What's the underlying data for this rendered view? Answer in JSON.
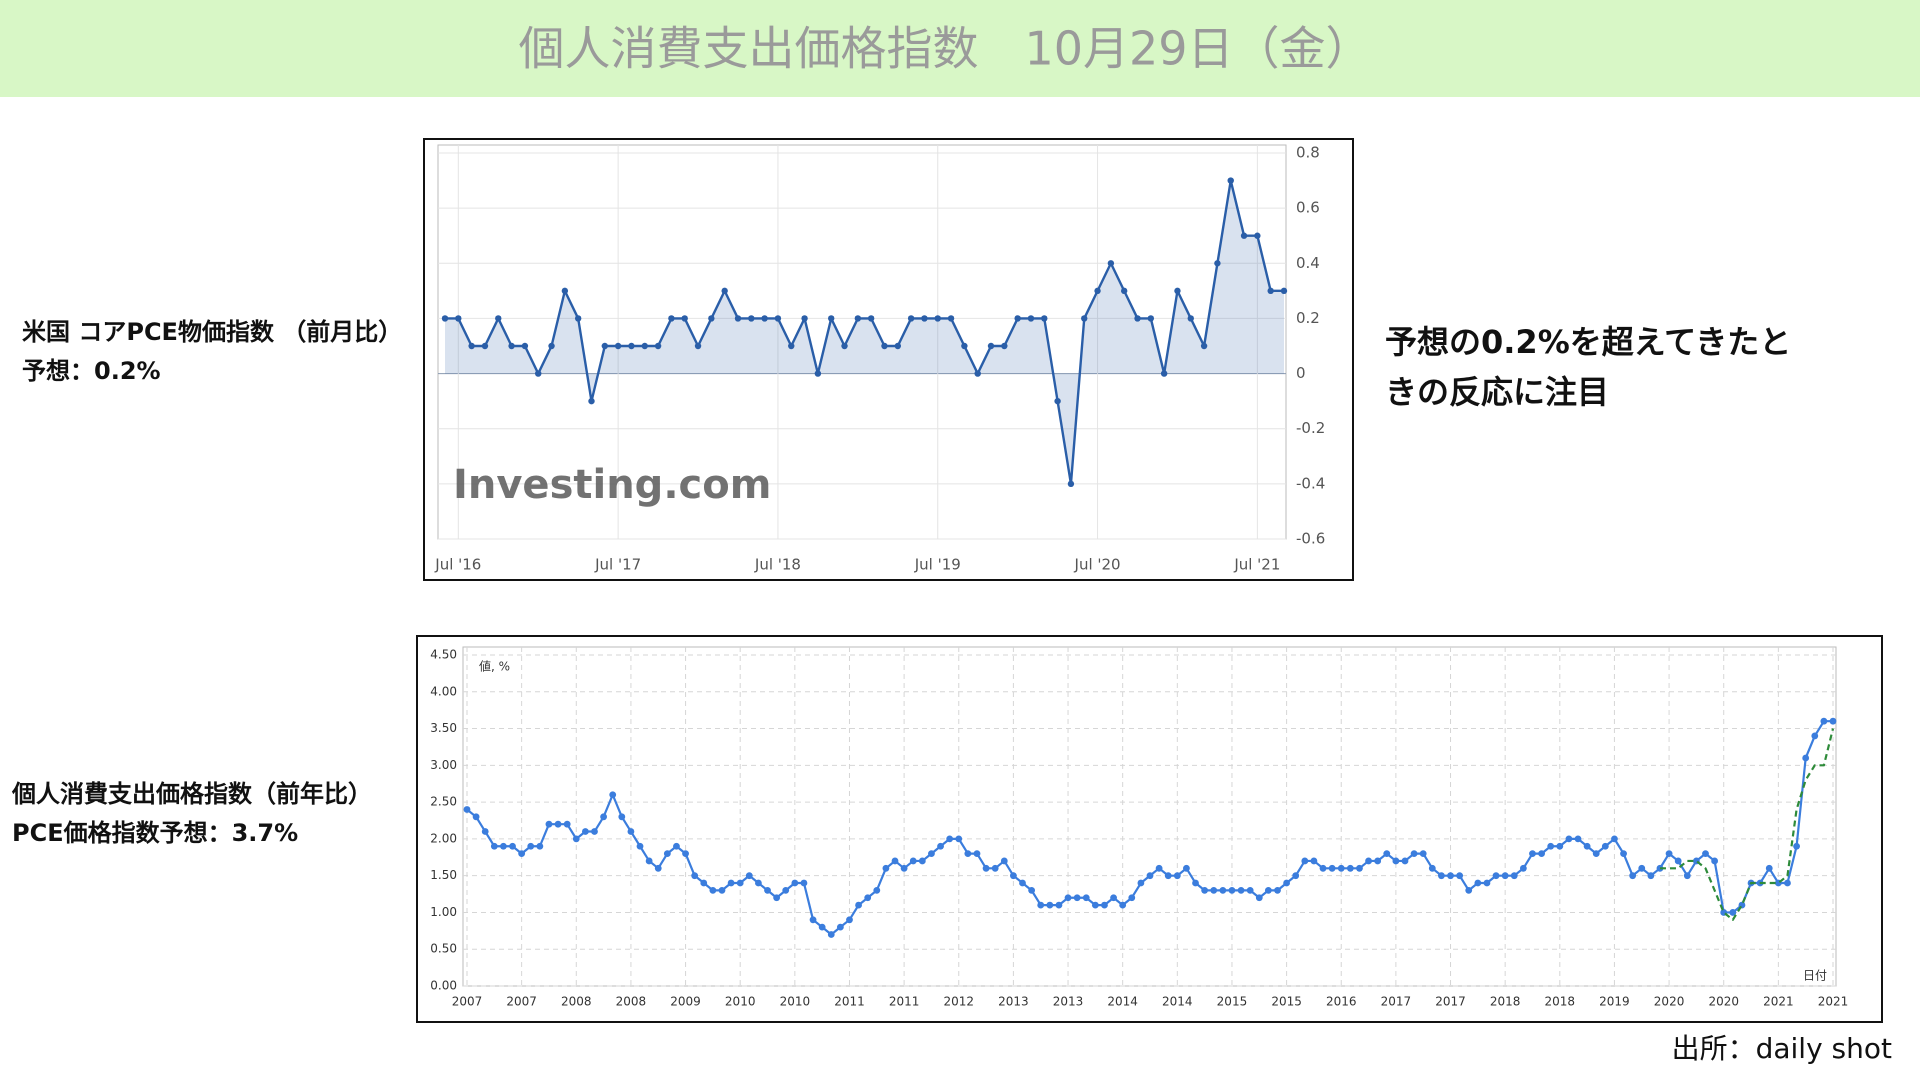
{
  "header": {
    "title": "個人消費支出価格指数　10月29日（金）"
  },
  "labels": {
    "core_title": "米国 コアPCE物価指数 （前月比）",
    "core_forecast": "予想：0.2%",
    "pce_title": "個人消費支出価格指数（前年比）",
    "pce_forecast": "PCE価格指数予想：3.7%"
  },
  "note": {
    "line1": "予想の0.2%を超えてきたと",
    "line2": "きの反応に注目"
  },
  "source": "出所：daily shot",
  "chart_data": [
    {
      "type": "line",
      "watermark": "Investing.com",
      "area": true,
      "grid": true,
      "categories": [
        null,
        "Jul '16",
        null,
        null,
        null,
        null,
        null,
        null,
        null,
        null,
        null,
        null,
        null,
        "Jul '17",
        null,
        null,
        null,
        null,
        null,
        null,
        null,
        null,
        null,
        null,
        null,
        "Jul '18",
        null,
        null,
        null,
        null,
        null,
        null,
        null,
        null,
        null,
        null,
        null,
        "Jul '19",
        null,
        null,
        null,
        null,
        null,
        null,
        null,
        null,
        null,
        null,
        null,
        "Jul '20",
        null,
        null,
        null,
        null,
        null,
        null,
        null,
        null,
        null,
        null,
        null,
        "Jul '21",
        null,
        null
      ],
      "series": [
        {
          "color": "#2a5ea8",
          "markers": true,
          "values": [
            0.2,
            0.2,
            0.1,
            0.1,
            0.2,
            0.1,
            0.1,
            0.0,
            0.1,
            0.3,
            0.2,
            -0.1,
            0.1,
            0.1,
            0.1,
            0.1,
            0.1,
            0.2,
            0.2,
            0.1,
            0.2,
            0.3,
            0.2,
            0.2,
            0.2,
            0.2,
            0.1,
            0.2,
            0.0,
            0.2,
            0.1,
            0.2,
            0.2,
            0.1,
            0.1,
            0.2,
            0.2,
            0.2,
            0.2,
            0.1,
            0.0,
            0.1,
            0.1,
            0.2,
            0.2,
            0.2,
            -0.1,
            -0.4,
            0.2,
            0.3,
            0.4,
            0.3,
            0.2,
            0.2,
            0.0,
            0.3,
            0.2,
            0.1,
            0.4,
            0.7,
            0.5,
            0.5,
            0.3,
            0.3
          ]
        }
      ],
      "ylim": [
        -0.6,
        0.8
      ],
      "yticks": [
        0.8,
        0.6,
        0.4,
        0.2,
        0,
        -0.2,
        -0.4,
        -0.6
      ]
    },
    {
      "type": "line",
      "grid": true,
      "ylabel": "値, %",
      "xlabel": "日付",
      "categories": [
        "2007",
        null,
        null,
        null,
        null,
        null,
        "2007",
        null,
        null,
        null,
        null,
        null,
        "2008",
        null,
        null,
        null,
        null,
        null,
        "2008",
        null,
        null,
        null,
        null,
        null,
        "2009",
        null,
        null,
        null,
        null,
        null,
        "2010",
        null,
        null,
        null,
        null,
        null,
        "2010",
        null,
        null,
        null,
        null,
        null,
        "2011",
        null,
        null,
        null,
        null,
        null,
        "2011",
        null,
        null,
        null,
        null,
        null,
        "2012",
        null,
        null,
        null,
        null,
        null,
        "2013",
        null,
        null,
        null,
        null,
        null,
        "2013",
        null,
        null,
        null,
        null,
        null,
        "2014",
        null,
        null,
        null,
        null,
        null,
        "2014",
        null,
        null,
        null,
        null,
        null,
        "2015",
        null,
        null,
        null,
        null,
        null,
        "2015",
        null,
        null,
        null,
        null,
        null,
        "2016",
        null,
        null,
        null,
        null,
        null,
        "2017",
        null,
        null,
        null,
        null,
        null,
        "2017",
        null,
        null,
        null,
        null,
        null,
        "2018",
        null,
        null,
        null,
        null,
        null,
        "2018",
        null,
        null,
        null,
        null,
        null,
        "2019",
        null,
        null,
        null,
        null,
        null,
        "2020",
        null,
        null,
        null,
        null,
        null,
        "2020",
        null,
        null,
        null,
        null,
        null,
        "2021",
        null,
        null,
        null,
        null,
        null,
        "2021"
      ],
      "series": [
        {
          "color": "#3b7ddd",
          "markers": true,
          "values": [
            2.4,
            2.3,
            2.1,
            1.9,
            1.9,
            1.9,
            1.8,
            1.9,
            1.9,
            2.2,
            2.2,
            2.2,
            2.0,
            2.1,
            2.1,
            2.3,
            2.6,
            2.3,
            2.1,
            1.9,
            1.7,
            1.6,
            1.8,
            1.9,
            1.8,
            1.5,
            1.4,
            1.3,
            1.3,
            1.4,
            1.4,
            1.5,
            1.4,
            1.3,
            1.2,
            1.3,
            1.4,
            1.4,
            0.9,
            0.8,
            0.7,
            0.8,
            0.9,
            1.1,
            1.2,
            1.3,
            1.6,
            1.7,
            1.6,
            1.7,
            1.7,
            1.8,
            1.9,
            2.0,
            2.0,
            1.8,
            1.8,
            1.6,
            1.6,
            1.7,
            1.5,
            1.4,
            1.3,
            1.1,
            1.1,
            1.1,
            1.2,
            1.2,
            1.2,
            1.1,
            1.1,
            1.2,
            1.1,
            1.2,
            1.4,
            1.5,
            1.6,
            1.5,
            1.5,
            1.6,
            1.4,
            1.3,
            1.3,
            1.3,
            1.3,
            1.3,
            1.3,
            1.2,
            1.3,
            1.3,
            1.4,
            1.5,
            1.7,
            1.7,
            1.6,
            1.6,
            1.6,
            1.6,
            1.6,
            1.7,
            1.7,
            1.8,
            1.7,
            1.7,
            1.8,
            1.8,
            1.6,
            1.5,
            1.5,
            1.5,
            1.3,
            1.4,
            1.4,
            1.5,
            1.5,
            1.5,
            1.6,
            1.8,
            1.8,
            1.9,
            1.9,
            2.0,
            2.0,
            1.9,
            1.8,
            1.9,
            2.0,
            1.8,
            1.5,
            1.6,
            1.5,
            1.6,
            1.8,
            1.7,
            1.5,
            1.7,
            1.8,
            1.7,
            1.0,
            1.0,
            1.1,
            1.4,
            1.4,
            1.6,
            1.4,
            1.4,
            1.9,
            3.1,
            3.4,
            3.6,
            3.6
          ]
        },
        {
          "color": "#2e8b3a",
          "style": "dashed",
          "values": [
            null,
            null,
            null,
            null,
            null,
            null,
            null,
            null,
            null,
            null,
            null,
            null,
            null,
            null,
            null,
            null,
            null,
            null,
            null,
            null,
            null,
            null,
            null,
            null,
            null,
            null,
            null,
            null,
            null,
            null,
            null,
            null,
            null,
            null,
            null,
            null,
            null,
            null,
            null,
            null,
            null,
            null,
            null,
            null,
            null,
            null,
            null,
            null,
            null,
            null,
            null,
            null,
            null,
            null,
            null,
            null,
            null,
            null,
            null,
            null,
            null,
            null,
            null,
            null,
            null,
            null,
            null,
            null,
            null,
            null,
            null,
            null,
            null,
            null,
            null,
            null,
            null,
            null,
            null,
            null,
            null,
            null,
            null,
            null,
            null,
            null,
            null,
            null,
            null,
            null,
            null,
            null,
            null,
            null,
            null,
            null,
            null,
            null,
            null,
            null,
            null,
            null,
            null,
            null,
            null,
            null,
            null,
            null,
            null,
            null,
            null,
            null,
            null,
            null,
            null,
            null,
            null,
            null,
            null,
            null,
            null,
            null,
            null,
            null,
            null,
            null,
            null,
            null,
            null,
            null,
            null,
            1.6,
            1.6,
            1.6,
            1.7,
            1.7,
            1.6,
            1.3,
            1.0,
            0.9,
            1.1,
            1.4,
            1.4,
            1.4,
            1.4,
            1.5,
            2.4,
            2.8,
            3.0,
            3.0,
            3.5
          ]
        }
      ],
      "ylim": [
        0,
        4.5
      ],
      "yticks": [
        {
          "value": 0,
          "label": "0.00"
        },
        {
          "value": 0.5,
          "label": "0.50"
        },
        {
          "value": 1,
          "label": "1.00"
        },
        {
          "value": 1.5,
          "label": "1.50"
        },
        {
          "value": 2,
          "label": "2.00"
        },
        {
          "value": 2.5,
          "label": "2.50"
        },
        {
          "value": 3,
          "label": "3.00"
        },
        {
          "value": 3.5,
          "label": "3.50"
        },
        {
          "value": 4,
          "label": "4.00"
        },
        {
          "value": 4.5,
          "label": "4.50"
        }
      ]
    }
  ]
}
